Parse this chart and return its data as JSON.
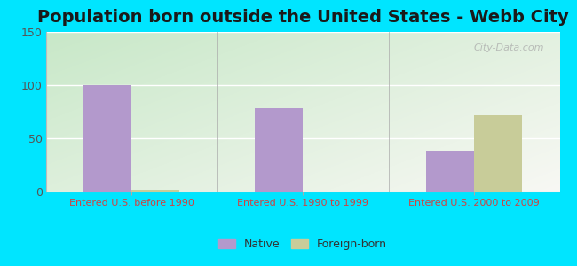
{
  "title": "Population born outside the United States - Webb City",
  "categories": [
    "Entered U.S. before 1990",
    "Entered U.S. 1990 to 1999",
    "Entered U.S. 2000 to 2009"
  ],
  "native_values": [
    100,
    78,
    38
  ],
  "foreign_values": [
    2,
    0,
    72
  ],
  "native_color": "#b399cc",
  "foreign_color": "#c8cc99",
  "ylim": [
    0,
    150
  ],
  "yticks": [
    0,
    50,
    100,
    150
  ],
  "background_outer": "#00e5ff",
  "background_inner_top_left": "#d5ead5",
  "background_inner_right": "#f0f5ec",
  "title_fontsize": 14,
  "tick_label_color": "#cc4444",
  "bar_width": 0.28,
  "legend_native": "Native",
  "legend_foreign": "Foreign-born",
  "watermark": "City-Data.com"
}
